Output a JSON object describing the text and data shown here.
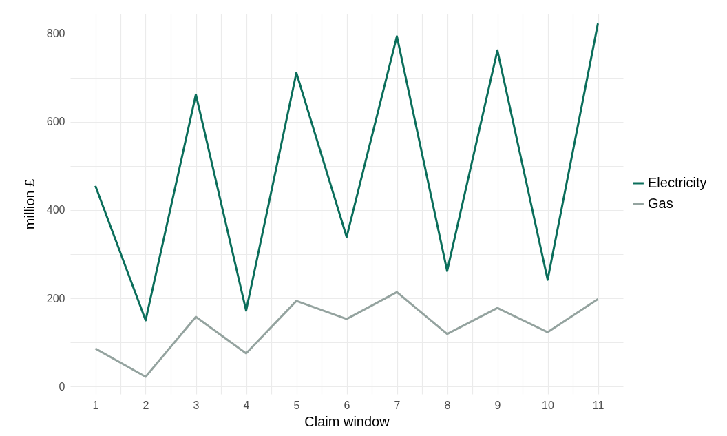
{
  "chart_data": {
    "type": "line",
    "xlabel": "Claim window",
    "ylabel": "million £",
    "x": [
      1,
      2,
      3,
      4,
      5,
      6,
      7,
      8,
      9,
      10,
      11
    ],
    "xlim": [
      0.5,
      11.5
    ],
    "xticks": [
      1,
      {
        "value": 1.5,
        "label": null
      },
      2,
      {
        "value": 2.5,
        "label": null
      },
      3,
      {
        "value": 3.5,
        "label": null
      },
      4,
      {
        "value": 4.5,
        "label": null
      },
      5,
      {
        "value": 5.5,
        "label": null
      },
      6,
      {
        "value": 6.5,
        "label": null
      },
      7,
      {
        "value": 7.5,
        "label": null
      },
      8,
      {
        "value": 8.5,
        "label": null
      },
      9,
      {
        "value": 9.5,
        "label": null
      },
      10,
      {
        "value": 10.5,
        "label": null
      },
      11
    ],
    "ylim": [
      -17,
      845
    ],
    "yticks": [
      0,
      {
        "value": 100,
        "label": null
      },
      200,
      {
        "value": 300,
        "label": null
      },
      400,
      {
        "value": 500,
        "label": null
      },
      600,
      {
        "value": 700,
        "label": null
      },
      800
    ],
    "series": [
      {
        "name": "Electricity",
        "color": "#0b6e5b",
        "values": [
          455,
          150,
          662,
          172,
          711,
          339,
          794,
          262,
          762,
          242,
          823
        ]
      },
      {
        "name": "Gas",
        "color": "#94a39f",
        "values": [
          86,
          22,
          158,
          75,
          194,
          153,
          214,
          119,
          178,
          123,
          198
        ]
      }
    ],
    "grid": true,
    "legend": "right",
    "marker": "none",
    "line_style": "solid"
  }
}
